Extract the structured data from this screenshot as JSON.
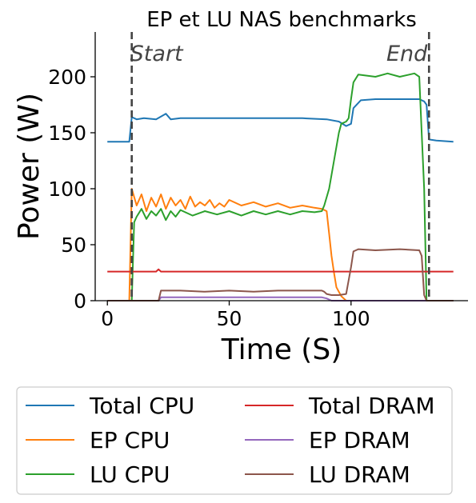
{
  "chart_data": {
    "type": "line",
    "title": "EP et LU NAS benchmarks",
    "xlabel": "Time (S)",
    "ylabel": "Power (W)",
    "xlim": [
      -5,
      148
    ],
    "ylim": [
      0,
      240
    ],
    "xticks": [
      0,
      50,
      100
    ],
    "yticks": [
      0,
      50,
      100,
      150,
      200
    ],
    "x_tick_labels": [
      "0",
      "50",
      "100"
    ],
    "y_tick_labels": [
      "0",
      "50",
      "100",
      "150",
      "200"
    ],
    "grid": false,
    "legend_position": "below",
    "markers": [
      {
        "label": "Start",
        "x": 10
      },
      {
        "label": "End",
        "x": 132
      }
    ],
    "series": [
      {
        "name": "Total CPU",
        "color": "#1f77b4",
        "points": [
          [
            0,
            142
          ],
          [
            9,
            142
          ],
          [
            10,
            164
          ],
          [
            12,
            162
          ],
          [
            15,
            163
          ],
          [
            20,
            162
          ],
          [
            24,
            167
          ],
          [
            26,
            162
          ],
          [
            30,
            163
          ],
          [
            40,
            163
          ],
          [
            50,
            163
          ],
          [
            60,
            163
          ],
          [
            70,
            163
          ],
          [
            80,
            163
          ],
          [
            90,
            162
          ],
          [
            95,
            160
          ],
          [
            98,
            156
          ],
          [
            100,
            158
          ],
          [
            101,
            172
          ],
          [
            104,
            179
          ],
          [
            110,
            180
          ],
          [
            120,
            180
          ],
          [
            128,
            180
          ],
          [
            130,
            178
          ],
          [
            131,
            175
          ],
          [
            132,
            144
          ],
          [
            135,
            143
          ],
          [
            142,
            142
          ]
        ]
      },
      {
        "name": "EP CPU",
        "color": "#ff7f0e",
        "points": [
          [
            0,
            0
          ],
          [
            9,
            0
          ],
          [
            10,
            100
          ],
          [
            12,
            85
          ],
          [
            14,
            95
          ],
          [
            16,
            80
          ],
          [
            18,
            92
          ],
          [
            20,
            84
          ],
          [
            22,
            95
          ],
          [
            24,
            82
          ],
          [
            26,
            92
          ],
          [
            28,
            85
          ],
          [
            30,
            90
          ],
          [
            32,
            82
          ],
          [
            34,
            93
          ],
          [
            36,
            84
          ],
          [
            38,
            88
          ],
          [
            40,
            85
          ],
          [
            42,
            90
          ],
          [
            44,
            83
          ],
          [
            46,
            87
          ],
          [
            48,
            84
          ],
          [
            50,
            90
          ],
          [
            55,
            85
          ],
          [
            60,
            88
          ],
          [
            65,
            84
          ],
          [
            70,
            87
          ],
          [
            75,
            83
          ],
          [
            80,
            85
          ],
          [
            85,
            83
          ],
          [
            88,
            82
          ],
          [
            90,
            80
          ],
          [
            91,
            60
          ],
          [
            92,
            40
          ],
          [
            93,
            25
          ],
          [
            94,
            12
          ],
          [
            96,
            4
          ],
          [
            98,
            0
          ],
          [
            142,
            0
          ]
        ]
      },
      {
        "name": "LU CPU",
        "color": "#2ca02c",
        "points": [
          [
            0,
            0
          ],
          [
            10,
            0
          ],
          [
            11,
            70
          ],
          [
            12,
            75
          ],
          [
            14,
            82
          ],
          [
            16,
            73
          ],
          [
            18,
            80
          ],
          [
            20,
            76
          ],
          [
            22,
            82
          ],
          [
            24,
            72
          ],
          [
            26,
            80
          ],
          [
            28,
            75
          ],
          [
            30,
            81
          ],
          [
            35,
            76
          ],
          [
            40,
            80
          ],
          [
            45,
            77
          ],
          [
            50,
            80
          ],
          [
            55,
            76
          ],
          [
            60,
            80
          ],
          [
            65,
            77
          ],
          [
            70,
            80
          ],
          [
            75,
            77
          ],
          [
            80,
            80
          ],
          [
            85,
            79
          ],
          [
            88,
            80
          ],
          [
            89,
            85
          ],
          [
            91,
            100
          ],
          [
            93,
            125
          ],
          [
            95,
            150
          ],
          [
            96,
            158
          ],
          [
            98,
            160
          ],
          [
            99,
            163
          ],
          [
            100,
            180
          ],
          [
            101,
            195
          ],
          [
            103,
            202
          ],
          [
            110,
            200
          ],
          [
            115,
            203
          ],
          [
            120,
            200
          ],
          [
            126,
            203
          ],
          [
            128,
            200
          ],
          [
            129,
            150
          ],
          [
            130,
            100
          ],
          [
            131,
            0
          ],
          [
            142,
            0
          ]
        ]
      },
      {
        "name": "Total DRAM",
        "color": "#d62728",
        "points": [
          [
            0,
            26
          ],
          [
            20,
            26
          ],
          [
            21,
            28
          ],
          [
            22,
            26
          ],
          [
            40,
            26
          ],
          [
            60,
            26
          ],
          [
            80,
            26
          ],
          [
            100,
            26
          ],
          [
            120,
            26
          ],
          [
            132,
            26
          ],
          [
            142,
            26
          ]
        ]
      },
      {
        "name": "EP DRAM",
        "color": "#9467bd",
        "points": [
          [
            0,
            0
          ],
          [
            21,
            0
          ],
          [
            22,
            3
          ],
          [
            30,
            3
          ],
          [
            40,
            3
          ],
          [
            50,
            3
          ],
          [
            60,
            3
          ],
          [
            70,
            3
          ],
          [
            80,
            3
          ],
          [
            88,
            3
          ],
          [
            90,
            2
          ],
          [
            92,
            0
          ],
          [
            142,
            0
          ]
        ]
      },
      {
        "name": "LU DRAM",
        "color": "#8c564b",
        "points": [
          [
            0,
            0
          ],
          [
            21,
            0
          ],
          [
            22,
            9
          ],
          [
            30,
            9
          ],
          [
            40,
            8
          ],
          [
            50,
            9
          ],
          [
            60,
            8
          ],
          [
            70,
            9
          ],
          [
            80,
            9
          ],
          [
            88,
            9
          ],
          [
            89,
            8
          ],
          [
            90,
            6
          ],
          [
            92,
            5
          ],
          [
            95,
            5
          ],
          [
            98,
            6
          ],
          [
            100,
            30
          ],
          [
            101,
            44
          ],
          [
            103,
            46
          ],
          [
            110,
            45
          ],
          [
            120,
            46
          ],
          [
            128,
            45
          ],
          [
            129,
            40
          ],
          [
            130,
            5
          ],
          [
            131,
            0
          ],
          [
            142,
            0
          ]
        ]
      }
    ]
  }
}
